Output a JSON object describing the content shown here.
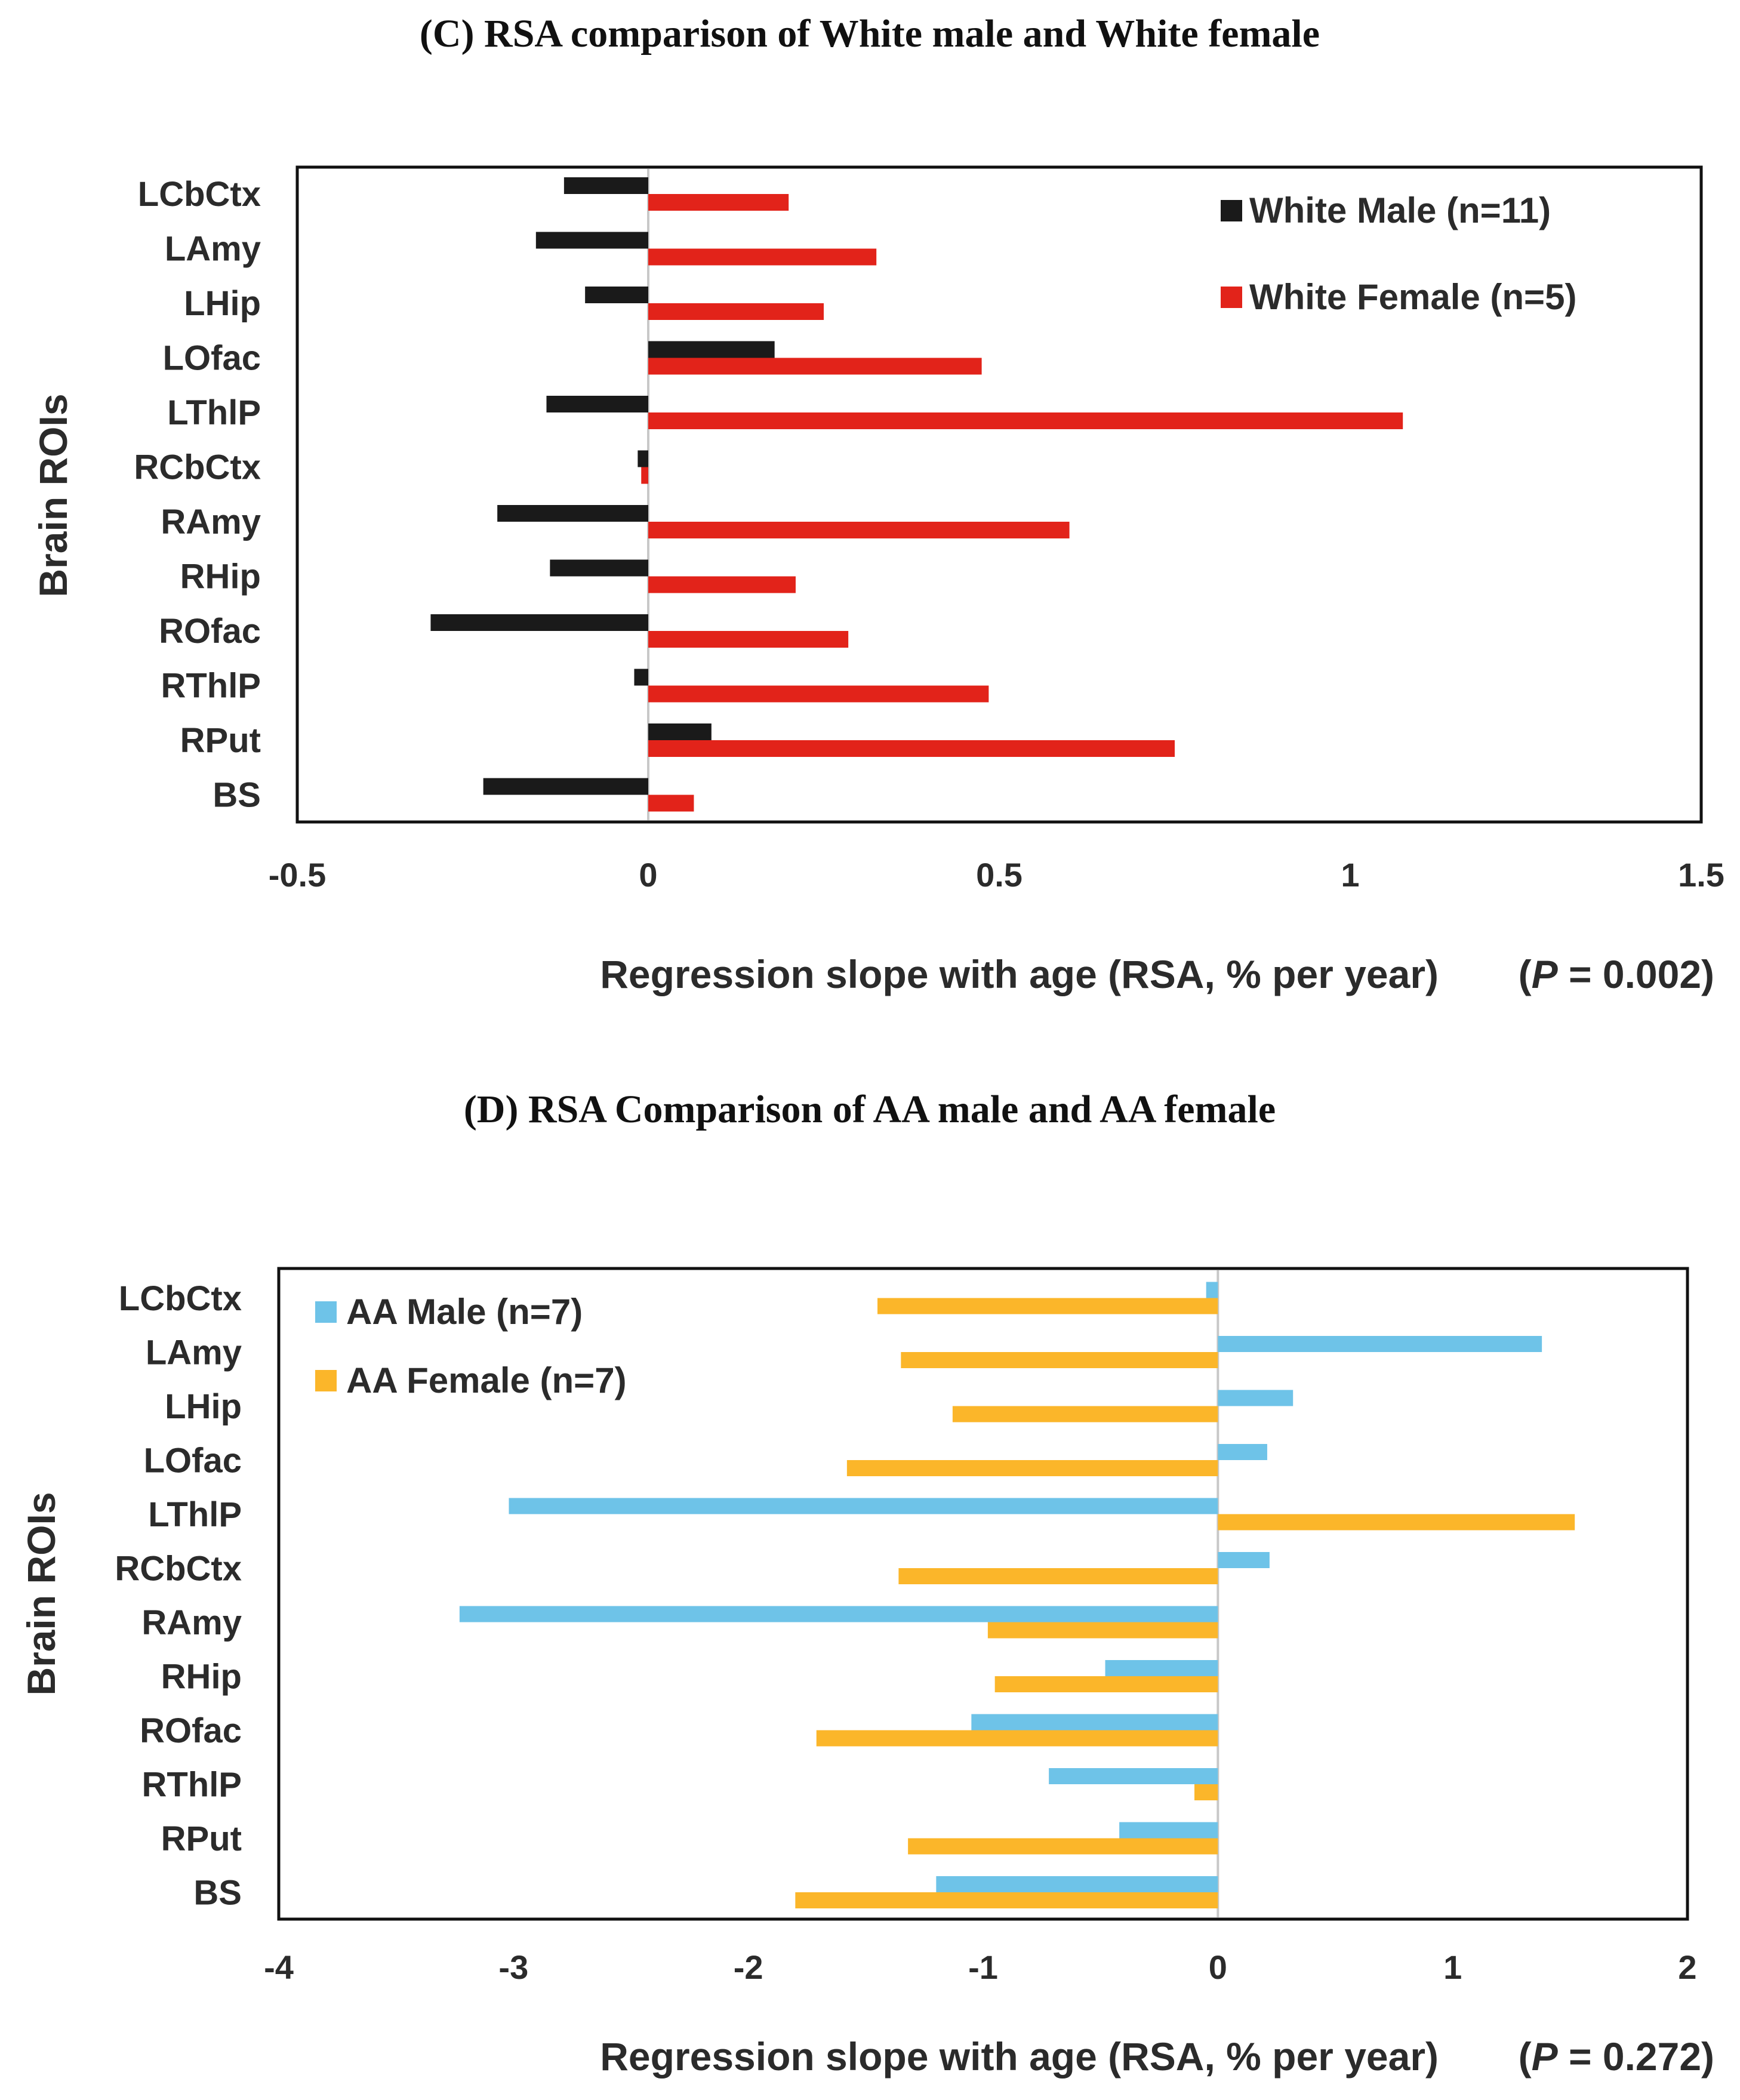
{
  "chart_data": [
    {
      "type": "bar",
      "orientation": "horizontal",
      "panel_title": "(C) RSA comparison of White male and White female",
      "ylabel": "Brain ROIs",
      "xlabel": "Regression slope with age (RSA, % per year)",
      "p_value_label": "(P = 0.002)",
      "p_value": {
        "open": "(",
        "letter": "P",
        "rest": " = 0.002)"
      },
      "xlim": [
        -0.5,
        1.5
      ],
      "xticks": [
        -0.5,
        0,
        0.5,
        1,
        1.5
      ],
      "xtick_labels": [
        "-0.5",
        "0",
        "0.5",
        "1",
        "1.5"
      ],
      "legend_position": "top-right",
      "categories": [
        "LCbCtx",
        "LAmy",
        "LHip",
        "LOfac",
        "LThlP",
        "RCbCtx",
        "RAmy",
        "RHip",
        "ROfac",
        "RThlP",
        "RPut",
        "BS"
      ],
      "series": [
        {
          "name": "White Male (n=11)",
          "color": "#1a1a1a",
          "values": [
            -0.12,
            -0.16,
            -0.09,
            0.18,
            -0.145,
            -0.015,
            -0.215,
            -0.14,
            -0.31,
            -0.02,
            0.09,
            -0.235
          ]
        },
        {
          "name": "White Female (n=5)",
          "color": "#e2231a",
          "values": [
            0.2,
            0.325,
            0.25,
            0.475,
            1.075,
            -0.01,
            0.6,
            0.21,
            0.285,
            0.485,
            0.75,
            0.065
          ]
        }
      ]
    },
    {
      "type": "bar",
      "orientation": "horizontal",
      "panel_title": "(D) RSA Comparison of AA male and AA female",
      "ylabel": "Brain ROIs",
      "xlabel": "Regression slope with age (RSA, % per year)",
      "p_value_label": "(P = 0.272)",
      "p_value": {
        "open": "(",
        "letter": "P",
        "rest": " = 0.272)"
      },
      "xlim": [
        -4,
        2
      ],
      "xticks": [
        -4,
        -3,
        -2,
        -1,
        0,
        1,
        2
      ],
      "xtick_labels": [
        "-4",
        "-3",
        "-2",
        "-1",
        "0",
        "1",
        "2"
      ],
      "legend_position": "top-left",
      "categories": [
        "LCbCtx",
        "LAmy",
        "LHip",
        "LOfac",
        "LThlP",
        "RCbCtx",
        "RAmy",
        "RHip",
        "ROfac",
        "RThlP",
        "RPut",
        "BS"
      ],
      "series": [
        {
          "name": "AA Male (n=7)",
          "color": "#6ec3e8",
          "values": [
            -0.05,
            1.38,
            0.32,
            0.21,
            -3.02,
            0.22,
            -3.23,
            -0.48,
            -1.05,
            -0.72,
            -0.42,
            -1.2
          ]
        },
        {
          "name": "AA Female (n=7)",
          "color": "#fbb62a",
          "values": [
            -1.45,
            -1.35,
            -1.13,
            -1.58,
            1.52,
            -1.36,
            -0.98,
            -0.95,
            -1.71,
            -0.1,
            -1.32,
            -1.8
          ]
        }
      ]
    }
  ]
}
